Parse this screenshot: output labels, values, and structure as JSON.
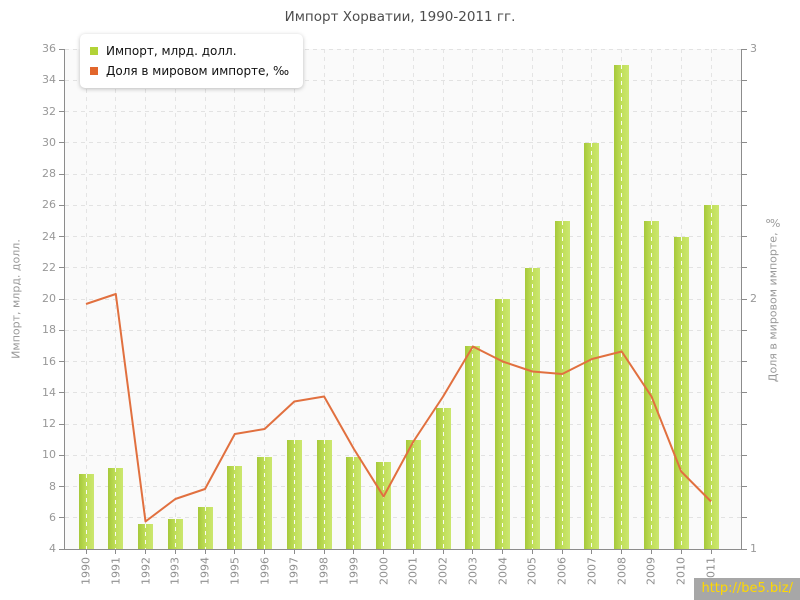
{
  "title": "Импорт Хорватии, 1990-2011 гг.",
  "legend": {
    "items": [
      {
        "label": "Импорт, млрд. долл.",
        "color": "#b2d337"
      },
      {
        "label": "Доля в мировом импорте, ‰",
        "color": "#e2662c"
      }
    ]
  },
  "watermark": "http://be5.biz/",
  "chart_data": {
    "type": "bar",
    "title": "Импорт Хорватии, 1990-2011 гг.",
    "categories": [
      "1990",
      "1991",
      "1992",
      "1993",
      "1994",
      "1995",
      "1996",
      "1997",
      "1998",
      "1999",
      "2000",
      "2001",
      "2002",
      "2003",
      "2004",
      "2005",
      "2006",
      "2007",
      "2008",
      "2009",
      "2010",
      "2011"
    ],
    "series": [
      {
        "name": "Импорт, млрд. долл.",
        "type": "bar",
        "axis": "left",
        "color": "#b8da4e",
        "values": [
          8.8,
          9.2,
          5.6,
          5.9,
          6.7,
          9.3,
          9.9,
          11.0,
          11.0,
          9.9,
          9.6,
          11.0,
          13.0,
          17.0,
          20.0,
          22.0,
          25.0,
          30.0,
          35.0,
          25.0,
          24.0,
          26.0
        ]
      },
      {
        "name": "Доля в мировом импорте, ‰",
        "type": "line",
        "axis": "right",
        "color": "#e1703f",
        "values": [
          1.98,
          2.02,
          1.11,
          1.2,
          1.24,
          1.46,
          1.48,
          1.59,
          1.61,
          1.4,
          1.21,
          1.43,
          1.61,
          1.81,
          1.75,
          1.71,
          1.7,
          1.76,
          1.79,
          1.61,
          1.31,
          1.19
        ]
      }
    ],
    "left_axis": {
      "label": "Импорт, млрд. долл.",
      "min": 4,
      "max": 36,
      "step": 2
    },
    "right_axis": {
      "label": "Доля в мировом импорте, ‰",
      "min": 1,
      "max": 3,
      "step": 1
    },
    "grid": true,
    "legend_position": "top-left"
  }
}
